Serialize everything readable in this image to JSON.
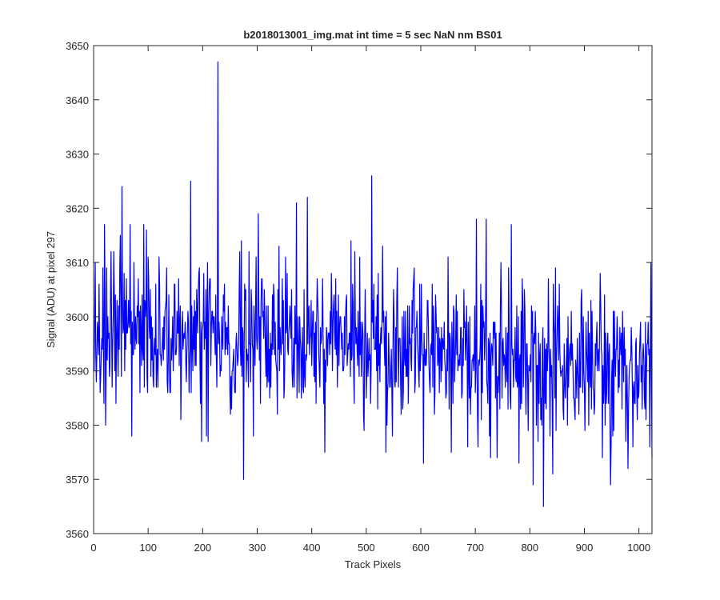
{
  "chart_data": {
    "type": "line",
    "title": "b2018013001_img.mat int time = 5 sec  NaN nm BS01",
    "xlabel": "Track Pixels",
    "ylabel": "Signal (ADU) at pixel 297",
    "xlim": [
      0,
      1024
    ],
    "ylim": [
      3560,
      3650
    ],
    "xticks": [
      0,
      100,
      200,
      300,
      400,
      500,
      600,
      700,
      800,
      900,
      1000
    ],
    "yticks": [
      3560,
      3570,
      3580,
      3590,
      3600,
      3610,
      3620,
      3630,
      3640,
      3650
    ],
    "grid": false,
    "series": [
      {
        "color": "#0000ff",
        "x_start": 1,
        "x_step": 1,
        "seed": 20180130,
        "trend": {
          "mean_at_start": 3599,
          "mean_at_end": 3590
        },
        "noise_std": 7,
        "clamp": [
          3566,
          3621
        ],
        "notable_points": [
          [
            1,
            3590
          ],
          [
            12,
            3586
          ],
          [
            22,
            3580
          ],
          [
            27,
            3596
          ],
          [
            32,
            3612
          ],
          [
            52,
            3624
          ],
          [
            70,
            3578
          ],
          [
            92,
            3617
          ],
          [
            178,
            3625
          ],
          [
            198,
            3577
          ],
          [
            207,
            3578
          ],
          [
            228,
            3647
          ],
          [
            275,
            3570
          ],
          [
            302,
            3619
          ],
          [
            328,
            3604
          ],
          [
            372,
            3621
          ],
          [
            392,
            3622
          ],
          [
            424,
            3575
          ],
          [
            510,
            3626
          ],
          [
            530,
            3613
          ],
          [
            605,
            3573
          ],
          [
            720,
            3618
          ],
          [
            728,
            3574
          ],
          [
            766,
            3617
          ],
          [
            780,
            3573
          ],
          [
            806,
            3569
          ],
          [
            825,
            3565
          ],
          [
            842,
            3571
          ],
          [
            948,
            3569
          ],
          [
            980,
            3572
          ],
          [
            1024,
            3574
          ],
          [
            1022,
            3610
          ]
        ]
      }
    ]
  }
}
